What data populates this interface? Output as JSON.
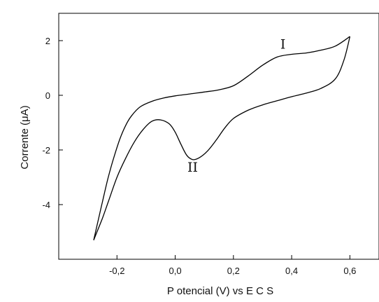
{
  "chart_data": {
    "type": "line",
    "title": "",
    "xlabel": "P otencial (V) vs E C S",
    "ylabel": "Corrente (μA)",
    "xlim": [
      -0.4,
      0.7
    ],
    "ylim": [
      -6.0,
      3.0
    ],
    "x_ticks": [
      -0.2,
      0.0,
      0.2,
      0.4,
      0.6
    ],
    "x_tick_labels": [
      "-0,2",
      "0,0",
      "0,2",
      "0,4",
      "0,6"
    ],
    "y_ticks": [
      -4,
      -2,
      0,
      2
    ],
    "y_tick_labels": [
      "-4",
      "-2",
      "0",
      "2"
    ],
    "series": [
      {
        "x": [
          -0.28,
          -0.265,
          -0.25,
          -0.23,
          -0.21,
          -0.19,
          -0.17,
          -0.15,
          -0.12,
          -0.08,
          -0.04,
          0.0,
          0.05,
          0.1,
          0.15,
          0.2,
          0.25,
          0.3,
          0.35,
          0.4,
          0.45,
          0.5,
          0.55,
          0.6
        ],
        "y": [
          -5.3,
          -4.6,
          -3.9,
          -3.0,
          -2.25,
          -1.6,
          -1.1,
          -0.75,
          -0.42,
          -0.22,
          -0.1,
          -0.02,
          0.05,
          0.12,
          0.2,
          0.35,
          0.7,
          1.1,
          1.4,
          1.5,
          1.55,
          1.65,
          1.8,
          2.15
        ]
      },
      {
        "x": [
          0.6,
          0.58,
          0.55,
          0.5,
          0.45,
          0.4,
          0.35,
          0.3,
          0.25,
          0.2,
          0.17,
          0.14,
          0.11,
          0.08,
          0.06,
          0.04,
          0.02,
          0.0,
          -0.02,
          -0.05,
          -0.08,
          -0.11,
          -0.14,
          -0.17,
          -0.2,
          -0.23,
          -0.25,
          -0.28
        ],
        "y": [
          2.15,
          1.3,
          0.6,
          0.25,
          0.08,
          -0.05,
          -0.2,
          -0.35,
          -0.55,
          -0.85,
          -1.2,
          -1.65,
          -2.05,
          -2.3,
          -2.35,
          -2.2,
          -1.8,
          -1.35,
          -1.05,
          -0.9,
          -0.95,
          -1.25,
          -1.7,
          -2.3,
          -3.0,
          -3.9,
          -4.5,
          -5.3
        ]
      }
    ],
    "annotations": [
      {
        "text": "I",
        "x": 0.37,
        "y": 1.7
      },
      {
        "text": "II",
        "x": 0.06,
        "y": -2.8
      }
    ],
    "grid": false,
    "line_color": "#000000"
  }
}
